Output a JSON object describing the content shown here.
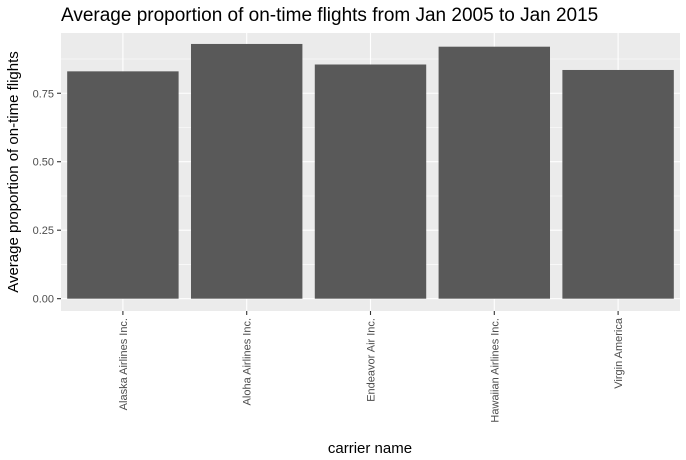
{
  "chart_data": {
    "type": "bar",
    "title": "Average proportion of on-time flights from Jan 2005 to Jan 2015",
    "xlabel": "carrier name",
    "ylabel": "Average proportion of on-time flights",
    "categories": [
      "Alaska Airlines Inc.",
      "Aloha Airlines Inc.",
      "Endeavor Air Inc.",
      "Hawaiian Airlines Inc.",
      "Virgin America"
    ],
    "values": [
      0.83,
      0.93,
      0.855,
      0.92,
      0.835
    ],
    "yticks": [
      "0.00",
      "0.25",
      "0.50",
      "0.75"
    ],
    "ylim": [
      -0.045,
      0.97
    ],
    "grid": true,
    "colors": {
      "panel": "#ebebeb",
      "grid": "#ffffff",
      "bar": "#595959",
      "tick": "#333333"
    }
  }
}
